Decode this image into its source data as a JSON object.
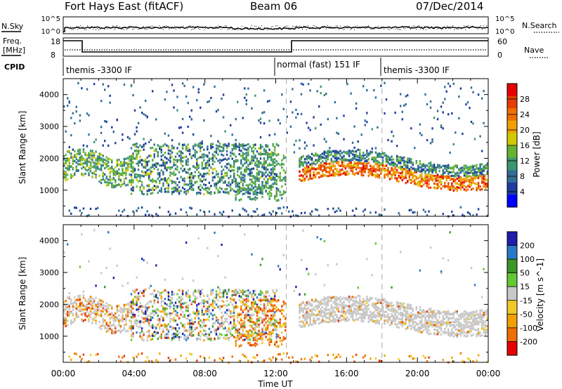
{
  "header": {
    "station": "Fort Hays East (fitACF)",
    "beam": "Beam 06",
    "date": "07/Dec/2014"
  },
  "panels": {
    "nsky_label": "N.Sky",
    "nsearch_label": "N.Search",
    "nsky_ticks": [
      "10^5",
      "10^0"
    ],
    "nsearch_ticks": [
      "10^5",
      "10^0"
    ],
    "freq_label_1": "Freq.",
    "freq_label_2": "[MHz]",
    "freq_ticks": [
      "18",
      "8"
    ],
    "nave_label": "Nave",
    "nave_ticks": [
      "60",
      "0"
    ],
    "cpid_label": "CPID",
    "cpid_segments": [
      {
        "text": "themis -3300 IF",
        "start": 0,
        "end": 12.6
      },
      {
        "text": "normal (fast) 151 IF",
        "start": 12.6,
        "end": 18.0
      },
      {
        "text": "themis -3300 IF",
        "start": 18.0,
        "end": 24
      }
    ]
  },
  "chart_data": [
    {
      "type": "heatmap",
      "title": "",
      "ylabel": "Slant Range [km]",
      "yticks": [
        "4000",
        "3000",
        "2000",
        "1000"
      ],
      "ylim": [
        180,
        4500
      ],
      "colorbar_label": "Power [dB]",
      "colorbar_ticks": [
        "28",
        "24",
        "20",
        "16",
        "12",
        "8",
        "4"
      ],
      "colorbar_range": [
        0,
        32
      ],
      "colors": [
        "#0000ff",
        "#1e3ca0",
        "#326e96",
        "#3c966e",
        "#64b432",
        "#d2c800",
        "#f0a000",
        "#f06e00",
        "#e63c00",
        "#e60000"
      ]
    },
    {
      "type": "heatmap",
      "title": "",
      "ylabel": "Slant Range [km]",
      "yticks": [
        "4000",
        "3000",
        "2000",
        "1000"
      ],
      "ylim": [
        180,
        4500
      ],
      "colorbar_label": "Velocity [m s^-1]",
      "colorbar_ticks": [
        "200",
        "100",
        "50",
        "15",
        "-15",
        "-50",
        "-100",
        "-200"
      ],
      "colors": [
        "#1e1eaa",
        "#2850c8",
        "#2878c8",
        "#3c9628",
        "#64c832",
        "#c8c8c8",
        "#f0c828",
        "#f0a000",
        "#f06e00",
        "#e63c00",
        "#e60000"
      ]
    }
  ],
  "xaxis": {
    "ticks": [
      "00:00",
      "04:00",
      "08:00",
      "12:00",
      "16:00",
      "20:00",
      "00:00"
    ],
    "label": "Time UT"
  }
}
